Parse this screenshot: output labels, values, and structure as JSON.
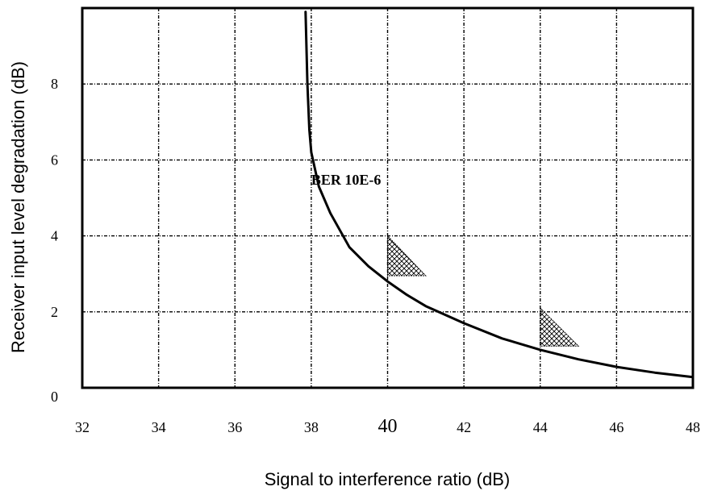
{
  "chart_data": {
    "type": "line",
    "title": "",
    "xlabel": "Signal to interference ratio (dB)",
    "ylabel": "Receiver input level degradation (dB)",
    "xlim": [
      32,
      48
    ],
    "ylim": [
      0,
      10
    ],
    "x_ticks": [
      32,
      34,
      36,
      38,
      40,
      42,
      44,
      46,
      48
    ],
    "x_tick_labels": [
      "32",
      "34",
      "36",
      "38",
      "40",
      "42",
      "44",
      "46",
      "48"
    ],
    "y_ticks": [
      0,
      2,
      4,
      6,
      8
    ],
    "y_tick_labels": [
      "0",
      "2",
      "4",
      "6",
      "8"
    ],
    "grid": true,
    "grid_style": "dash-dot",
    "series": [
      {
        "x": [
          37.85,
          37.9,
          37.95,
          38.0,
          38.2,
          38.5,
          39.0,
          39.5,
          40.0,
          40.5,
          41.0,
          42.0,
          43.0,
          44.0,
          45.0,
          46.0,
          47.0,
          48.0
        ],
        "y": [
          9.9,
          8.0,
          6.8,
          6.2,
          5.3,
          4.6,
          3.7,
          3.2,
          2.8,
          2.45,
          2.15,
          1.7,
          1.3,
          1.0,
          0.75,
          0.55,
          0.4,
          0.28
        ],
        "color": "#000000"
      }
    ],
    "annotations": [
      {
        "text": "BER 10E-6",
        "x": 38.0,
        "y": 5.35
      }
    ],
    "hatched_markers": [
      {
        "x": 40.0,
        "y_top": 4.0,
        "y_base": 2.95,
        "x_end": 41.0
      },
      {
        "x": 44.0,
        "y_top": 2.1,
        "y_base": 1.1,
        "x_end": 45.0
      }
    ]
  }
}
